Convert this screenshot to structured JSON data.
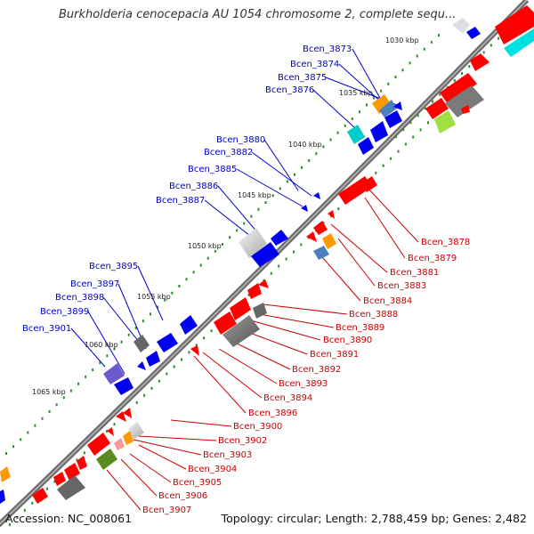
{
  "title": "Burkholderia cenocepacia AU 1054 chromosome 2, complete sequ...",
  "footer": {
    "accession": "Accession: NC_008061",
    "summary": "Topology: circular; Length: 2,788,459 bp; Genes: 2,482"
  },
  "colors": {
    "forward_label": "#0000cc",
    "reverse_label": "#cc0000",
    "backbone": "#777777",
    "tick": "#2e8b2e"
  },
  "kbp_markers": [
    "1030 kbp",
    "1035 kbp",
    "1040 kbp",
    "1045 kbp",
    "1050 kbp",
    "1055 kbp",
    "1060 kbp",
    "1065 kbp"
  ],
  "forward_genes": [
    "Bcen_3873",
    "Bcen_3874",
    "Bcen_3875",
    "Bcen_3876",
    "Bcen_3880",
    "Bcen_3882",
    "Bcen_3885",
    "Bcen_3886",
    "Bcen_3887",
    "Bcen_3895",
    "Bcen_3897",
    "Bcen_3898",
    "Bcen_3899",
    "Bcen_3901"
  ],
  "reverse_genes": [
    "Bcen_3878",
    "Bcen_3879",
    "Bcen_3881",
    "Bcen_3883",
    "Bcen_3884",
    "Bcen_3888",
    "Bcen_3889",
    "Bcen_3890",
    "Bcen_3891",
    "Bcen_3892",
    "Bcen_3893",
    "Bcen_3894",
    "Bcen_3896",
    "Bcen_3900",
    "Bcen_3902",
    "Bcen_3903",
    "Bcen_3904",
    "Bcen_3905",
    "Bcen_3906",
    "Bcen_3907"
  ]
}
